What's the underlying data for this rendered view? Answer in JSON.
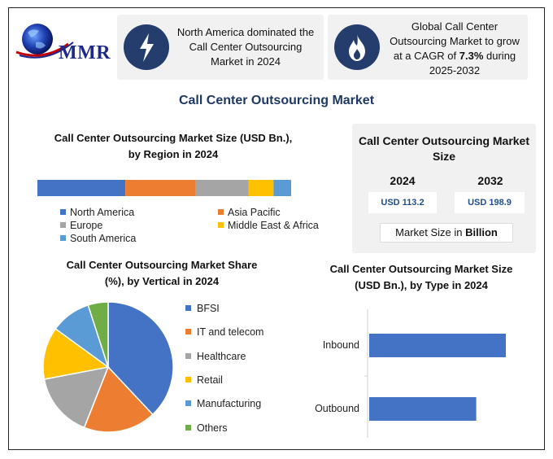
{
  "logo": {
    "text": "MMR"
  },
  "cards": [
    {
      "icon": "lightning-icon",
      "text": "North America dominated the Call Center Outsourcing Market in 2024"
    },
    {
      "icon": "flame-icon",
      "text_before": "Global Call Center Outsourcing Market to grow at a CAGR of ",
      "highlight": "7.3%",
      "text_after": " during 2025-2032"
    }
  ],
  "main_title": "Call Center Outsourcing Market",
  "colors": {
    "blue": "#4472c4",
    "orange": "#ed7d31",
    "gray": "#a5a5a5",
    "yellow": "#ffc000",
    "lightblue": "#5b9bd5",
    "green": "#70ad47"
  },
  "market_size": {
    "title": "Call Center Outsourcing Market Size",
    "years": [
      "2024",
      "2032"
    ],
    "values": [
      "USD 113.2",
      "USD 198.9"
    ],
    "unit_before": "Market Size in ",
    "unit_bold": "Billion"
  },
  "chart_data": [
    {
      "type": "bar",
      "orientation": "horizontal-stacked",
      "title": "Call Center Outsourcing Market Size (USD Bn.), by Region in 2024",
      "categories": [
        "North America",
        "Asia Pacific",
        "Europe",
        "Middle East & Africa",
        "South America"
      ],
      "values": [
        35,
        28,
        21,
        10,
        7
      ],
      "colors": [
        "#4472c4",
        "#ed7d31",
        "#a5a5a5",
        "#ffc000",
        "#5b9bd5"
      ],
      "legend": "bottom"
    },
    {
      "type": "pie",
      "title": "Call Center Outsourcing Market Share (%), by Vertical in 2024",
      "categories": [
        "BFSI",
        "IT and telecom",
        "Healthcare",
        "Retail",
        "Manufacturing",
        "Others"
      ],
      "values": [
        38,
        18,
        16,
        13,
        10,
        5
      ],
      "colors": [
        "#4472c4",
        "#ed7d31",
        "#a5a5a5",
        "#ffc000",
        "#5b9bd5",
        "#70ad47"
      ],
      "legend": "right"
    },
    {
      "type": "bar",
      "orientation": "horizontal",
      "title": "Call Center Outsourcing Market Size (USD Bn.), by Type in 2024",
      "categories": [
        "Inbound",
        "Outbound"
      ],
      "values": [
        60,
        47
      ],
      "xlim": [
        0,
        70
      ],
      "color": "#4472c4"
    }
  ]
}
